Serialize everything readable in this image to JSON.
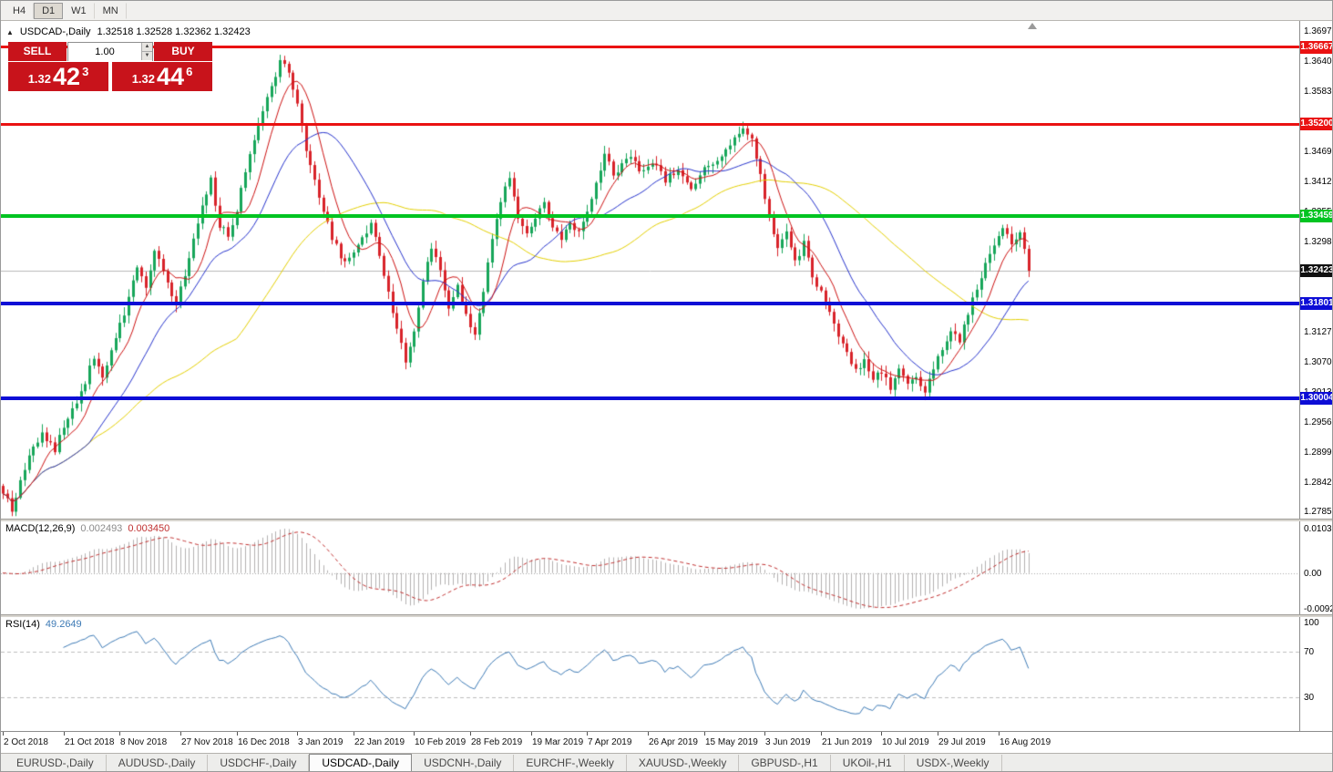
{
  "toolbar": {
    "buttons": [
      {
        "label": "H4",
        "active": false
      },
      {
        "label": "D1",
        "active": true
      },
      {
        "label": "W1",
        "active": false
      },
      {
        "label": "MN",
        "active": false
      }
    ]
  },
  "header": {
    "symbol": "USDCAD-,Daily",
    "ohlc": "1.32518 1.32528 1.32362 1.32423"
  },
  "trade_panel": {
    "sell_label": "SELL",
    "buy_label": "BUY",
    "volume": "1.00",
    "sell_price": {
      "prefix": "1.32",
      "big": "42",
      "sup": "3"
    },
    "buy_price": {
      "prefix": "1.32",
      "big": "44",
      "sup": "6"
    }
  },
  "price_axis": {
    "ticks": [
      "1.36970",
      "1.36400",
      "1.35830",
      "1.35260",
      "1.34690",
      "1.34120",
      "1.33550",
      "1.32980",
      "1.32410",
      "1.31840",
      "1.31270",
      "1.30700",
      "1.30130",
      "1.29560",
      "1.28990",
      "1.28420",
      "1.27850"
    ]
  },
  "levels": [
    {
      "label": "1.36667",
      "price": 1.36667,
      "color": "#ea1212",
      "thickness": 3
    },
    {
      "label": "1.35200",
      "price": 1.352,
      "color": "#ea1212",
      "thickness": 3
    },
    {
      "label": "1.33459",
      "price": 1.33459,
      "color": "#00c421",
      "thickness": 4
    },
    {
      "label": "1.31801",
      "price": 1.31801,
      "color": "#0d0dd6",
      "thickness": 4
    },
    {
      "label": "1.30004",
      "price": 1.30004,
      "color": "#0d0dd6",
      "thickness": 4
    }
  ],
  "bid": {
    "label": "1.32423",
    "price": 1.32423,
    "line_color": "#b8b8b8",
    "tag_color": "#111111"
  },
  "chart_data": {
    "type": "candlestick",
    "symbol": "USDCAD",
    "timeframe": "Daily",
    "price_range": {
      "top": 1.3716,
      "bottom": 1.2772
    },
    "candle_count": 238,
    "colors": {
      "up": "#17a65a",
      "down": "#d8232a",
      "ma_fast": "#cc1111",
      "ma_mid": "#2633cc",
      "ma_slow": "#e3cf00"
    },
    "ma_periods": {
      "fast": 8,
      "mid": 21,
      "slow": 55
    },
    "close_waypoints": [
      [
        0,
        1.2825
      ],
      [
        2,
        1.2786
      ],
      [
        4,
        1.284
      ],
      [
        6,
        1.2892
      ],
      [
        9,
        1.293
      ],
      [
        12,
        1.2902
      ],
      [
        15,
        1.2968
      ],
      [
        18,
        1.301
      ],
      [
        21,
        1.3078
      ],
      [
        23,
        1.3042
      ],
      [
        26,
        1.311
      ],
      [
        29,
        1.319
      ],
      [
        31,
        1.3248
      ],
      [
        33,
        1.3215
      ],
      [
        35,
        1.3282
      ],
      [
        37,
        1.324
      ],
      [
        40,
        1.3178
      ],
      [
        43,
        1.3265
      ],
      [
        46,
        1.337
      ],
      [
        48,
        1.3415
      ],
      [
        50,
        1.333
      ],
      [
        52,
        1.331
      ],
      [
        54,
        1.336
      ],
      [
        56,
        1.343
      ],
      [
        58,
        1.349
      ],
      [
        60,
        1.3545
      ],
      [
        62,
        1.3588
      ],
      [
        64,
        1.3642
      ],
      [
        66,
        1.3618
      ],
      [
        68,
        1.356
      ],
      [
        70,
        1.3475
      ],
      [
        73,
        1.3385
      ],
      [
        76,
        1.3305
      ],
      [
        79,
        1.3255
      ],
      [
        82,
        1.3292
      ],
      [
        85,
        1.3332
      ],
      [
        87,
        1.3268
      ],
      [
        89,
        1.3198
      ],
      [
        91,
        1.3128
      ],
      [
        93,
        1.3072
      ],
      [
        95,
        1.3125
      ],
      [
        97,
        1.3222
      ],
      [
        99,
        1.3288
      ],
      [
        101,
        1.3238
      ],
      [
        103,
        1.3168
      ],
      [
        105,
        1.3212
      ],
      [
        107,
        1.3158
      ],
      [
        109,
        1.3118
      ],
      [
        111,
        1.3202
      ],
      [
        113,
        1.3302
      ],
      [
        115,
        1.3378
      ],
      [
        117,
        1.3415
      ],
      [
        119,
        1.3348
      ],
      [
        121,
        1.3312
      ],
      [
        123,
        1.3342
      ],
      [
        125,
        1.3368
      ],
      [
        127,
        1.333
      ],
      [
        129,
        1.3295
      ],
      [
        131,
        1.3332
      ],
      [
        133,
        1.3312
      ],
      [
        135,
        1.3352
      ],
      [
        137,
        1.3408
      ],
      [
        139,
        1.3465
      ],
      [
        141,
        1.3422
      ],
      [
        143,
        1.3442
      ],
      [
        145,
        1.3458
      ],
      [
        147,
        1.3432
      ],
      [
        150,
        1.3448
      ],
      [
        153,
        1.3415
      ],
      [
        156,
        1.3438
      ],
      [
        159,
        1.34
      ],
      [
        162,
        1.3432
      ],
      [
        165,
        1.3452
      ],
      [
        168,
        1.3482
      ],
      [
        171,
        1.351
      ],
      [
        173,
        1.3488
      ],
      [
        175,
        1.3422
      ],
      [
        177,
        1.3342
      ],
      [
        179,
        1.3282
      ],
      [
        181,
        1.3312
      ],
      [
        183,
        1.3262
      ],
      [
        185,
        1.3292
      ],
      [
        187,
        1.3232
      ],
      [
        189,
        1.3198
      ],
      [
        191,
        1.3162
      ],
      [
        193,
        1.3122
      ],
      [
        195,
        1.3082
      ],
      [
        197,
        1.3052
      ],
      [
        199,
        1.3072
      ],
      [
        201,
        1.3038
      ],
      [
        203,
        1.3052
      ],
      [
        205,
        1.3022
      ],
      [
        207,
        1.3058
      ],
      [
        209,
        1.3028
      ],
      [
        211,
        1.3042
      ],
      [
        213,
        1.3012
      ],
      [
        215,
        1.3058
      ],
      [
        217,
        1.3092
      ],
      [
        219,
        1.3132
      ],
      [
        221,
        1.3108
      ],
      [
        223,
        1.3162
      ],
      [
        225,
        1.3208
      ],
      [
        227,
        1.3252
      ],
      [
        229,
        1.3288
      ],
      [
        231,
        1.3322
      ],
      [
        233,
        1.3296
      ],
      [
        235,
        1.3318
      ],
      [
        237,
        1.32423
      ]
    ],
    "dates": {
      "labels": [
        "2 Oct 2018",
        "21 Oct 2018",
        "8 Nov 2018",
        "27 Nov 2018",
        "16 Dec 2018",
        "3 Jan 2019",
        "22 Jan 2019",
        "10 Feb 2019",
        "28 Feb 2019",
        "19 Mar 2019",
        "7 Apr 2019",
        "26 Apr 2019",
        "15 May 2019",
        "3 Jun 2019",
        "21 Jun 2019",
        "10 Jul 2019",
        "29 Jul 2019",
        "16 Aug 2019"
      ],
      "indices": [
        0,
        14,
        27,
        41,
        54,
        68,
        81,
        95,
        108,
        122,
        135,
        149,
        162,
        176,
        189,
        203,
        216,
        230
      ]
    },
    "macd": {
      "name": "MACD(12,26,9)",
      "value": "0.002493",
      "signal_value": "0.003450",
      "axis_max": "0.010311",
      "axis_zero": "0.00",
      "axis_min": "-0.009203",
      "fast": 12,
      "slow": 26,
      "signal": 9,
      "hist_color": "#b3b1b1",
      "signal_color": "#c03030"
    },
    "rsi": {
      "name": "RSI(14)",
      "value": "49.2649",
      "period": 14,
      "axis": [
        "100",
        "70",
        "30"
      ],
      "levels": [
        70,
        30
      ],
      "line_color": "#3d7ab5"
    }
  },
  "tabs": {
    "items": [
      {
        "label": "EURUSD-,Daily",
        "active": false
      },
      {
        "label": "AUDUSD-,Daily",
        "active": false
      },
      {
        "label": "USDCHF-,Daily",
        "active": false
      },
      {
        "label": "USDCAD-,Daily",
        "active": true
      },
      {
        "label": "USDCNH-,Daily",
        "active": false
      },
      {
        "label": "EURCHF-,Weekly",
        "active": false
      },
      {
        "label": "XAUUSD-,Weekly",
        "active": false
      },
      {
        "label": "GBPUSD-,H1",
        "active": false
      },
      {
        "label": "UKOil-,H1",
        "active": false
      },
      {
        "label": "USDX-,Weekly",
        "active": false
      }
    ]
  }
}
